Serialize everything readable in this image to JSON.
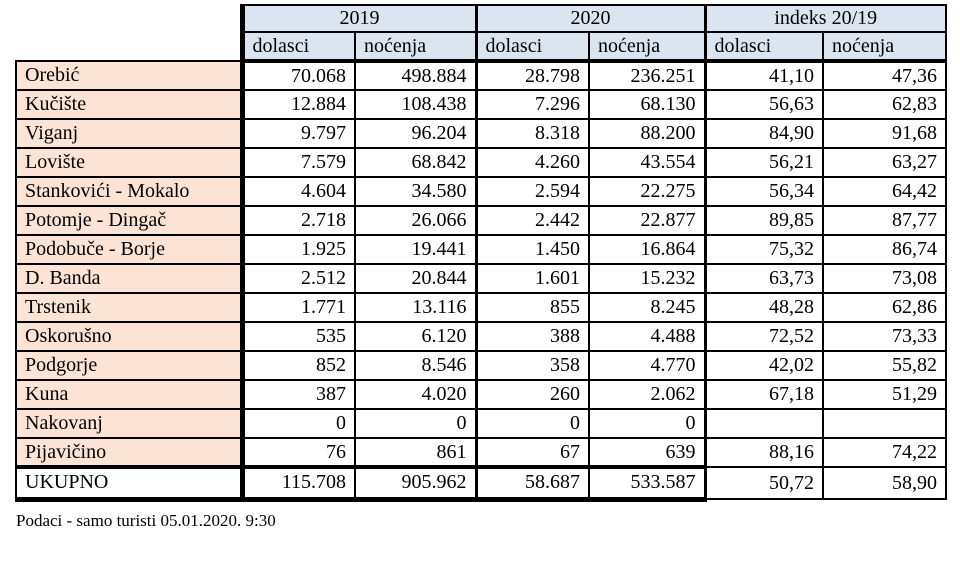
{
  "table": {
    "col_groups": [
      {
        "label": "2019"
      },
      {
        "label": "2020"
      },
      {
        "label": "indeks 20/19"
      }
    ],
    "sub_headers": [
      "dolasci",
      "noćenja",
      "dolasci",
      "noćenja",
      "dolasci",
      "noćenja"
    ],
    "rows": [
      {
        "name": "Orebić",
        "cells": [
          "70.068",
          "498.884",
          "28.798",
          "236.251",
          "41,10",
          "47,36"
        ]
      },
      {
        "name": "Kučište",
        "cells": [
          "12.884",
          "108.438",
          "7.296",
          "68.130",
          "56,63",
          "62,83"
        ]
      },
      {
        "name": "Viganj",
        "cells": [
          "9.797",
          "96.204",
          "8.318",
          "88.200",
          "84,90",
          "91,68"
        ]
      },
      {
        "name": "Lovište",
        "cells": [
          "7.579",
          "68.842",
          "4.260",
          "43.554",
          "56,21",
          "63,27"
        ]
      },
      {
        "name": "Stankovići - Mokalo",
        "cells": [
          "4.604",
          "34.580",
          "2.594",
          "22.275",
          "56,34",
          "64,42"
        ]
      },
      {
        "name": "Potomje - Dingač",
        "cells": [
          "2.718",
          "26.066",
          "2.442",
          "22.877",
          "89,85",
          "87,77"
        ]
      },
      {
        "name": "Podobuče - Borje",
        "cells": [
          "1.925",
          "19.441",
          "1.450",
          "16.864",
          "75,32",
          "86,74"
        ]
      },
      {
        "name": "D. Banda",
        "cells": [
          "2.512",
          "20.844",
          "1.601",
          "15.232",
          "63,73",
          "73,08"
        ]
      },
      {
        "name": "Trstenik",
        "cells": [
          "1.771",
          "13.116",
          "855",
          "8.245",
          "48,28",
          "62,86"
        ]
      },
      {
        "name": "Oskorušno",
        "cells": [
          "535",
          "6.120",
          "388",
          "4.488",
          "72,52",
          "73,33"
        ]
      },
      {
        "name": "Podgorje",
        "cells": [
          "852",
          "8.546",
          "358",
          "4.770",
          "42,02",
          "55,82"
        ]
      },
      {
        "name": "Kuna",
        "cells": [
          "387",
          "4.020",
          "260",
          "2.062",
          "67,18",
          "51,29"
        ]
      },
      {
        "name": "Nakovanj",
        "cells": [
          "0",
          "0",
          "0",
          "0",
          "",
          ""
        ]
      },
      {
        "name": "Pijavičino",
        "cells": [
          "76",
          "861",
          "67",
          "639",
          "88,16",
          "74,22"
        ]
      }
    ],
    "total_row": {
      "name": "UKUPNO",
      "cells": [
        "115.708",
        "905.962",
        "58.687",
        "533.587",
        "50,72",
        "58,90"
      ]
    }
  },
  "footer": {
    "note": "Podaci - samo turisti 05.01.2020. 9:30"
  },
  "colors": {
    "header_bg": "#dbe5f1",
    "row_label_bg": "#fbe4d5",
    "border": "#000000",
    "background": "#ffffff"
  }
}
